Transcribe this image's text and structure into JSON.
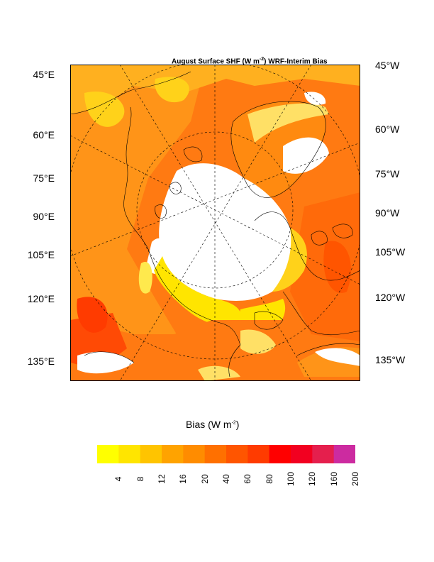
{
  "map": {
    "title_main": "August Surface SHF (W m",
    "title_sup": "-2",
    "title_tail": ") WRF-Interim Bias",
    "left_labels": [
      "45°E",
      "60°E",
      "75°E",
      "90°E",
      "105°E",
      "120°E",
      "135°E"
    ],
    "right_labels": [
      "45°W",
      "60°W",
      "75°W",
      "90°W",
      "105°W",
      "120°W",
      "135°W"
    ]
  },
  "colorbar": {
    "title_main": "Bias (W m",
    "title_sup": "-2",
    "title_tail": ")",
    "ticks": [
      "4",
      "8",
      "12",
      "16",
      "20",
      "40",
      "60",
      "80",
      "100",
      "120",
      "160",
      "200"
    ],
    "colors": [
      "#ffff00",
      "#ffe500",
      "#ffc400",
      "#ffa300",
      "#ff8c00",
      "#ff7000",
      "#ff5500",
      "#ff3b00",
      "#ff0000",
      "#f20020",
      "#e51f4d",
      "#cc2ba0"
    ]
  }
}
